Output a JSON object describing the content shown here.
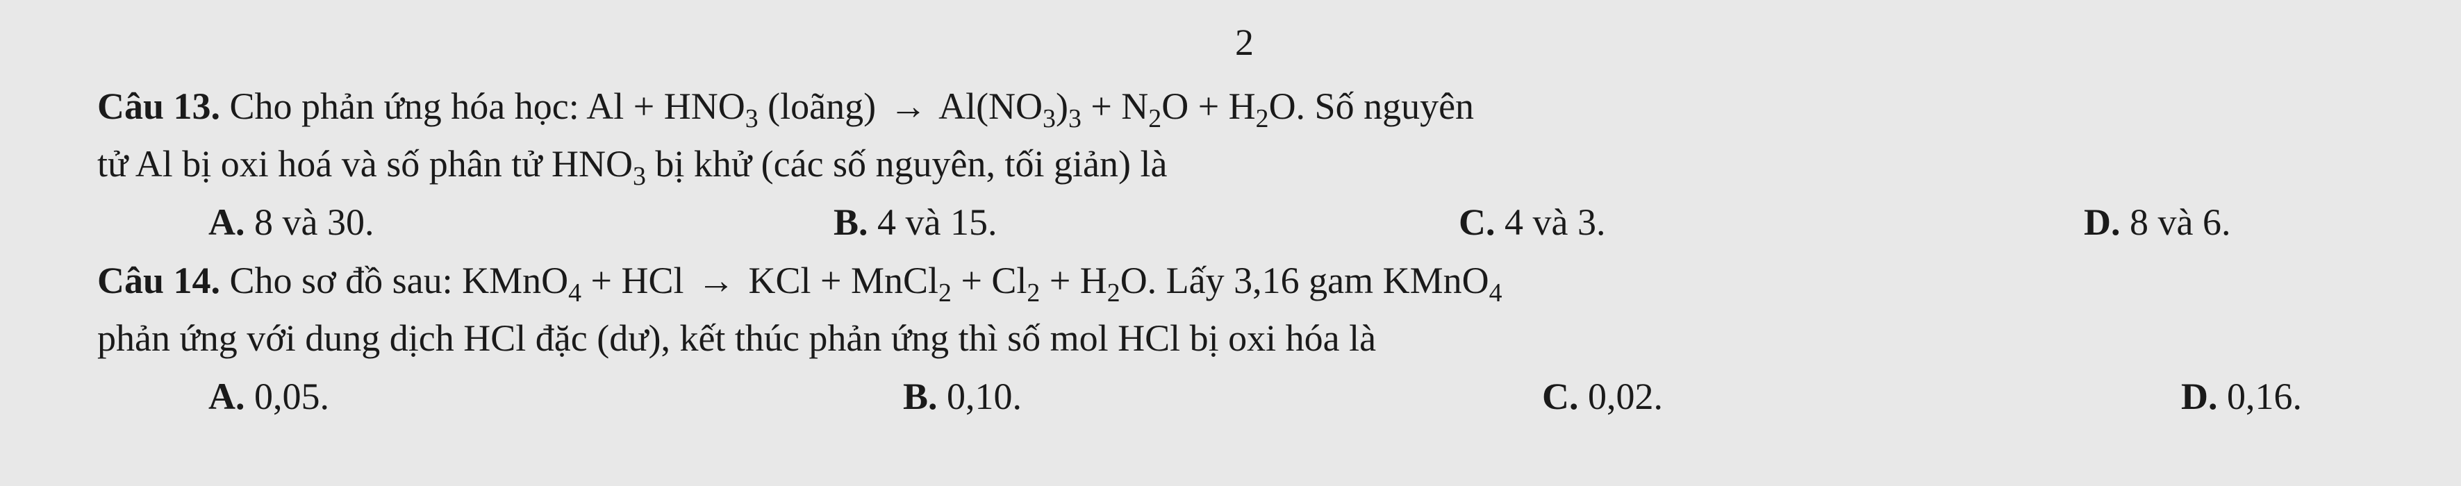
{
  "page_number": "2",
  "q13": {
    "label": "Câu 13.",
    "line1_prefix": " Cho phản ứng hóa học: Al + HNO",
    "line1_sub1": "3",
    "line1_mid1": " (loãng) ",
    "arrow": "→",
    "line1_mid2": " Al(NO",
    "line1_sub2": "3",
    "line1_mid3": ")",
    "line1_sub3": "3",
    "line1_mid4": "  + N",
    "line1_sub4": "2",
    "line1_mid5": "O + H",
    "line1_sub5": "2",
    "line1_tail": "O. Số nguyên",
    "line2_a": "tử Al bị oxi hoá và số phân tử HNO",
    "line2_sub": "3",
    "line2_b": " bị khử (các số nguyên, tối giản) là",
    "optA_label": "A.",
    "optA_text": " 8 và 30.",
    "optB_label": "B.",
    "optB_text": " 4 và 15.",
    "optC_label": "C.",
    "optC_text": " 4 và 3.",
    "optD_label": "D.",
    "optD_text": " 8 và 6."
  },
  "q14": {
    "label": "Câu 14.",
    "line1_a": " Cho sơ đồ sau: KMnO",
    "s1": "4",
    "line1_b": " + HCl ",
    "arrow": "→",
    "line1_c": " KCl + MnCl",
    "s2": "2",
    "line1_d": " + Cl",
    "s3": "2",
    "line1_e": " + H",
    "s4": "2",
    "line1_f": "O. Lấy 3,16 gam KMnO",
    "s5": "4",
    "line2": "phản ứng với dung dịch HCl đặc (dư), kết thúc phản ứng thì số mol HCl bị oxi hóa là",
    "optA_label": "A.",
    "optA_text": " 0,05.",
    "optB_label": "B.",
    "optB_text": " 0,10.",
    "optC_label": "C.",
    "optC_text": " 0,02.",
    "optD_label": "D.",
    "optD_text": " 0,16."
  }
}
